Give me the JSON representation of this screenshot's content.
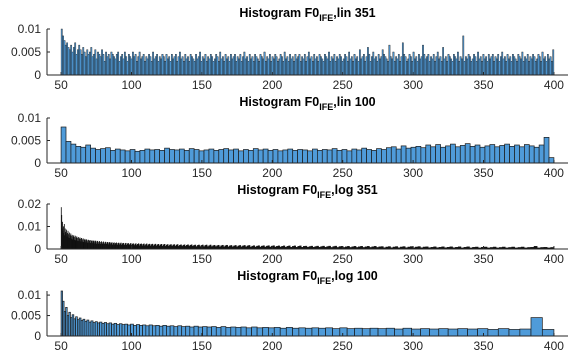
{
  "colors": {
    "bar_fill": "#4f9bd9",
    "bar_edge": "#1a1a1a",
    "axis": "#262626",
    "background": "#ffffff"
  },
  "chart_data": [
    {
      "type": "bar",
      "title_parts": [
        "Histogram F0",
        "IFE",
        ",lin 351"
      ],
      "xlim": [
        40,
        410
      ],
      "ylim": [
        0,
        0.01
      ],
      "x_ticks": [
        50,
        100,
        150,
        200,
        250,
        300,
        350,
        400
      ],
      "y_ticks": [
        0,
        0.005,
        0.01
      ],
      "x_tick_labels": [
        "50",
        "100",
        "150",
        "200",
        "250",
        "300",
        "350",
        "400"
      ],
      "y_tick_labels": [
        "0",
        "0.005",
        "0.01"
      ],
      "bin_count": 351,
      "x_min": 50,
      "x_max": 400,
      "bin_width": 0.997,
      "values": [
        0.01,
        0.0085,
        0.0075,
        0.0065,
        0.007,
        0.006,
        0.0055,
        0.0065,
        0.005,
        0.006,
        0.007,
        0.0045,
        0.0055,
        0.0065,
        0.0055,
        0.0045,
        0.006,
        0.005,
        0.004,
        0.0055,
        0.0045,
        0.005,
        0.006,
        0.004,
        0.0045,
        0.0055,
        0.0035,
        0.005,
        0.0045,
        0.004,
        0.0055,
        0.0045,
        0.003,
        0.005,
        0.004,
        0.0045,
        0.0035,
        0.005,
        0.0045,
        0.004,
        0.0035,
        0.0045,
        0.005,
        0.003,
        0.004,
        0.0045,
        0.0035,
        0.005,
        0.004,
        0.003,
        0.0045,
        0.004,
        0.0035,
        0.005,
        0.004,
        0.0045,
        0.003,
        0.004,
        0.005,
        0.0035,
        0.004,
        0.0045,
        0.003,
        0.004,
        0.0035,
        0.0045,
        0.004,
        0.003,
        0.005,
        0.0035,
        0.004,
        0.0045,
        0.003,
        0.004,
        0.0035,
        0.0045,
        0.004,
        0.003,
        0.0045,
        0.0035,
        0.004,
        0.003,
        0.0045,
        0.0035,
        0.004,
        0.0045,
        0.003,
        0.004,
        0.005,
        0.0035,
        0.004,
        0.003,
        0.0045,
        0.0035,
        0.004,
        0.003,
        0.0045,
        0.004,
        0.0035,
        0.003,
        0.0045,
        0.0035,
        0.004,
        0.005,
        0.003,
        0.004,
        0.0035,
        0.0045,
        0.003,
        0.004,
        0.0035,
        0.0045,
        0.004,
        0.003,
        0.0035,
        0.0045,
        0.004,
        0.003,
        0.005,
        0.0035,
        0.004,
        0.003,
        0.0045,
        0.0035,
        0.004,
        0.003,
        0.0045,
        0.0035,
        0.004,
        0.0045,
        0.003,
        0.004,
        0.0035,
        0.0045,
        0.003,
        0.004,
        0.005,
        0.0035,
        0.004,
        0.003,
        0.0045,
        0.0035,
        0.004,
        0.003,
        0.0045,
        0.004,
        0.0035,
        0.003,
        0.0045,
        0.004,
        0.0035,
        0.005,
        0.003,
        0.004,
        0.0035,
        0.0045,
        0.003,
        0.004,
        0.0035,
        0.0045,
        0.004,
        0.003,
        0.0035,
        0.0045,
        0.004,
        0.003,
        0.005,
        0.0035,
        0.004,
        0.003,
        0.0045,
        0.0035,
        0.004,
        0.003,
        0.0045,
        0.0035,
        0.004,
        0.0045,
        0.003,
        0.004,
        0.0035,
        0.0045,
        0.003,
        0.004,
        0.005,
        0.0035,
        0.004,
        0.003,
        0.0045,
        0.0035,
        0.004,
        0.003,
        0.0045,
        0.004,
        0.0035,
        0.003,
        0.0045,
        0.004,
        0.0035,
        0.005,
        0.003,
        0.004,
        0.0035,
        0.0045,
        0.003,
        0.004,
        0.0035,
        0.0045,
        0.004,
        0.003,
        0.0035,
        0.0045,
        0.004,
        0.003,
        0.005,
        0.0035,
        0.004,
        0.003,
        0.0045,
        0.0035,
        0.004,
        0.003,
        0.0055,
        0.0035,
        0.004,
        0.0045,
        0.003,
        0.004,
        0.006,
        0.0045,
        0.003,
        0.004,
        0.005,
        0.0035,
        0.004,
        0.003,
        0.0045,
        0.0035,
        0.004,
        0.0055,
        0.0045,
        0.004,
        0.0035,
        0.003,
        0.0065,
        0.004,
        0.0035,
        0.005,
        0.003,
        0.004,
        0.0035,
        0.0045,
        0.003,
        0.004,
        0.007,
        0.0045,
        0.004,
        0.003,
        0.0035,
        0.0045,
        0.004,
        0.003,
        0.005,
        0.0035,
        0.004,
        0.003,
        0.0045,
        0.0035,
        0.004,
        0.0065,
        0.0045,
        0.0035,
        0.004,
        0.0045,
        0.003,
        0.004,
        0.0035,
        0.0045,
        0.003,
        0.004,
        0.005,
        0.0035,
        0.004,
        0.003,
        0.006,
        0.0035,
        0.004,
        0.003,
        0.0045,
        0.004,
        0.0035,
        0.003,
        0.0045,
        0.004,
        0.0035,
        0.005,
        0.003,
        0.004,
        0.0035,
        0.0085,
        0.003,
        0.004,
        0.0035,
        0.0045,
        0.004,
        0.003,
        0.0035,
        0.0045,
        0.004,
        0.003,
        0.005,
        0.0035,
        0.004,
        0.003,
        0.0045,
        0.0035,
        0.004,
        0.003,
        0.0045,
        0.0035,
        0.004,
        0.0045,
        0.003,
        0.004,
        0.0035,
        0.0045,
        0.003,
        0.004,
        0.005,
        0.0035,
        0.004,
        0.003,
        0.0045,
        0.0035,
        0.004,
        0.003,
        0.0045,
        0.004,
        0.0035,
        0.003,
        0.0045,
        0.004,
        0.0035,
        0.005,
        0.003,
        0.004,
        0.0035,
        0.0045,
        0.003,
        0.004,
        0.0035,
        0.0045,
        0.004,
        0.003,
        0.0035,
        0.0045,
        0.004,
        0.003,
        0.005,
        0.0035,
        0.004,
        0.003,
        0.0045,
        0.0035,
        0.004,
        0.003,
        0.0055
      ]
    },
    {
      "type": "bar",
      "title_parts": [
        "Histogram F0",
        "IFE",
        ",lin 100"
      ],
      "xlim": [
        40,
        410
      ],
      "ylim": [
        0,
        0.01
      ],
      "x_ticks": [
        50,
        100,
        150,
        200,
        250,
        300,
        350,
        400
      ],
      "y_ticks": [
        0,
        0.005,
        0.01
      ],
      "x_tick_labels": [
        "50",
        "100",
        "150",
        "200",
        "250",
        "300",
        "350",
        "400"
      ],
      "y_tick_labels": [
        "0",
        "0.005",
        "0.01"
      ],
      "bin_count": 100,
      "x_min": 50,
      "x_max": 400,
      "bin_width": 3.5,
      "values": [
        0.008,
        0.0048,
        0.0042,
        0.0037,
        0.0035,
        0.004,
        0.0033,
        0.003,
        0.0032,
        0.0034,
        0.0028,
        0.0031,
        0.0029,
        0.0027,
        0.003,
        0.0026,
        0.0028,
        0.0031,
        0.0029,
        0.003,
        0.0028,
        0.0033,
        0.003,
        0.0029,
        0.0031,
        0.0028,
        0.0032,
        0.003,
        0.0027,
        0.0029,
        0.0031,
        0.0028,
        0.003,
        0.0032,
        0.0029,
        0.0031,
        0.0027,
        0.003,
        0.0028,
        0.0032,
        0.0029,
        0.0031,
        0.0028,
        0.003,
        0.0027,
        0.0029,
        0.0031,
        0.0028,
        0.003,
        0.0029,
        0.0027,
        0.0031,
        0.0028,
        0.003,
        0.0029,
        0.0032,
        0.0028,
        0.003,
        0.0027,
        0.0031,
        0.0029,
        0.0033,
        0.003,
        0.0028,
        0.0032,
        0.003,
        0.0034,
        0.0036,
        0.0031,
        0.0038,
        0.0033,
        0.0035,
        0.0037,
        0.0034,
        0.004,
        0.0036,
        0.0041,
        0.0035,
        0.0038,
        0.0042,
        0.0036,
        0.0039,
        0.0043,
        0.0037,
        0.004,
        0.0035,
        0.0038,
        0.0041,
        0.0036,
        0.0039,
        0.0042,
        0.0037,
        0.004,
        0.0036,
        0.0041,
        0.0038,
        0.0035,
        0.004,
        0.0057,
        0.0012
      ]
    },
    {
      "type": "bar",
      "title_parts": [
        "Histogram F0",
        "IFE",
        ",log 351"
      ],
      "xlim": [
        40,
        410
      ],
      "ylim": [
        0,
        0.02
      ],
      "x_ticks": [
        50,
        100,
        150,
        200,
        250,
        300,
        350,
        400
      ],
      "y_ticks": [
        0,
        0.01,
        0.02
      ],
      "x_tick_labels": [
        "50",
        "100",
        "150",
        "200",
        "250",
        "300",
        "350",
        "400"
      ],
      "y_tick_labels": [
        "0",
        "0.01",
        "0.02"
      ],
      "bin_count": 351,
      "x_min": 50,
      "x_max": 400,
      "log_bins": true,
      "values": [
        0.0185,
        0.015,
        0.009,
        0.012,
        0.008,
        0.01,
        0.007,
        0.011,
        0.006,
        0.009,
        0.0075,
        0.0065,
        0.0085,
        0.0055,
        0.007,
        0.008,
        0.005,
        0.0065,
        0.0072,
        0.0048,
        0.006,
        0.0068,
        0.0045,
        0.0058,
        0.0062,
        0.0042,
        0.0055,
        0.006,
        0.004,
        0.0052,
        0.0058,
        0.0038,
        0.005,
        0.0055,
        0.0036,
        0.0048,
        0.0052,
        0.0035,
        0.0046,
        0.005,
        0.0033,
        0.0044,
        0.0048,
        0.0032,
        0.0042,
        0.0046,
        0.003,
        0.004,
        0.0044,
        0.0029,
        0.0038,
        0.0042,
        0.0028,
        0.0037,
        0.004,
        0.0027,
        0.0036,
        0.0039,
        0.0026,
        0.0035,
        0.0038,
        0.0025,
        0.0034,
        0.0037,
        0.0024,
        0.0033,
        0.0036,
        0.0023,
        0.0032,
        0.0035,
        0.0023,
        0.0031,
        0.0034,
        0.0022,
        0.003,
        0.0033,
        0.0022,
        0.0029,
        0.0032,
        0.0021,
        0.0028,
        0.0031,
        0.0021,
        0.0028,
        0.003,
        0.002,
        0.0027,
        0.003,
        0.002,
        0.0026,
        0.0029,
        0.0019,
        0.0026,
        0.0028,
        0.0019,
        0.0025,
        0.0028,
        0.0018,
        0.0025,
        0.0027,
        0.0018,
        0.0024,
        0.0027,
        0.0018,
        0.0024,
        0.0026,
        0.0017,
        0.0023,
        0.0026,
        0.0017,
        0.0023,
        0.0025,
        0.0017,
        0.0022,
        0.0025,
        0.0016,
        0.0022,
        0.0024,
        0.0016,
        0.0022,
        0.0024,
        0.0016,
        0.0021,
        0.0024,
        0.0015,
        0.0021,
        0.0023,
        0.0015,
        0.0021,
        0.0023,
        0.0015,
        0.002,
        0.0023,
        0.0015,
        0.002,
        0.0022,
        0.0014,
        0.002,
        0.0022,
        0.0014,
        0.0019,
        0.0022,
        0.0014,
        0.0019,
        0.0021,
        0.0014,
        0.0019,
        0.0021,
        0.0013,
        0.0019,
        0.0021,
        0.0013,
        0.0018,
        0.002,
        0.0013,
        0.0018,
        0.002,
        0.0013,
        0.0018,
        0.002,
        0.0013,
        0.0018,
        0.002,
        0.0012,
        0.0017,
        0.0019,
        0.0012,
        0.0017,
        0.0019,
        0.0012,
        0.0017,
        0.0019,
        0.0012,
        0.0017,
        0.0019,
        0.0012,
        0.0016,
        0.0018,
        0.0011,
        0.0016,
        0.0018,
        0.0011,
        0.0016,
        0.0018,
        0.0011,
        0.0016,
        0.0018,
        0.0011,
        0.0015,
        0.0018,
        0.0011,
        0.0015,
        0.0017,
        0.0011,
        0.0015,
        0.0017,
        0.001,
        0.0015,
        0.0017,
        0.001,
        0.0015,
        0.0017,
        0.001,
        0.0014,
        0.0016,
        0.001,
        0.0014,
        0.0016,
        0.001,
        0.0014,
        0.0016,
        0.001,
        0.0014,
        0.0016,
        0.001,
        0.0014,
        0.0016,
        0.0009,
        0.0013,
        0.0015,
        0.0009,
        0.0013,
        0.0015,
        0.0009,
        0.0013,
        0.0015,
        0.0009,
        0.0013,
        0.0015,
        0.0009,
        0.0013,
        0.0015,
        0.0009,
        0.0012,
        0.0014,
        0.0009,
        0.0012,
        0.0014,
        0.0008,
        0.0012,
        0.0014,
        0.0008,
        0.0012,
        0.0014,
        0.0008,
        0.0012,
        0.0014,
        0.0008,
        0.0012,
        0.0013,
        0.0008,
        0.0011,
        0.0013,
        0.0008,
        0.0011,
        0.0013,
        0.0008,
        0.0011,
        0.0013,
        0.0008,
        0.0011,
        0.0013,
        0.0007,
        0.0011,
        0.0013,
        0.0007,
        0.0011,
        0.0012,
        0.0007,
        0.001,
        0.0012,
        0.0007,
        0.001,
        0.0012,
        0.0007,
        0.001,
        0.0012,
        0.0007,
        0.001,
        0.0012,
        0.0007,
        0.001,
        0.0012,
        0.0007,
        0.001,
        0.0011,
        0.0006,
        0.0009,
        0.0011,
        0.0006,
        0.0009,
        0.0011,
        0.0006,
        0.0009,
        0.0011,
        0.0006,
        0.0009,
        0.0011,
        0.0006,
        0.0009,
        0.0011,
        0.0006,
        0.0009,
        0.001,
        0.0006,
        0.0008,
        0.001,
        0.0006,
        0.0008,
        0.001,
        0.0006,
        0.0008,
        0.001,
        0.0006,
        0.0008,
        0.001,
        0.0005,
        0.0008,
        0.001,
        0.0005,
        0.0008,
        0.0009,
        0.0005,
        0.0008,
        0.0009,
        0.0005,
        0.0007,
        0.0009,
        0.0005,
        0.0007,
        0.0009,
        0.0005,
        0.0007,
        0.0009,
        0.0005,
        0.0007,
        0.0009,
        0.0005,
        0.0007,
        0.0008,
        0.0012,
        0.0005,
        0.0007,
        0.0008,
        0.0005,
        0.0007
      ]
    },
    {
      "type": "bar",
      "title_parts": [
        "Histogram F0",
        "IFE",
        ",log 100"
      ],
      "xlim": [
        40,
        410
      ],
      "ylim": [
        0,
        0.011
      ],
      "x_ticks": [
        50,
        100,
        150,
        200,
        250,
        300,
        350,
        400
      ],
      "y_ticks": [
        0,
        0.005,
        0.01
      ],
      "x_tick_labels": [
        "50",
        "100",
        "150",
        "200",
        "250",
        "300",
        "350",
        "400"
      ],
      "y_tick_labels": [
        "0",
        "0.005",
        "0.01"
      ],
      "bin_count": 100,
      "x_min": 50,
      "x_max": 400,
      "log_bins": true,
      "values": [
        0.011,
        0.0085,
        0.006,
        0.007,
        0.005,
        0.0058,
        0.0045,
        0.0052,
        0.0042,
        0.0047,
        0.004,
        0.0044,
        0.0038,
        0.0041,
        0.0036,
        0.0039,
        0.0034,
        0.0037,
        0.0033,
        0.0035,
        0.0032,
        0.0034,
        0.0031,
        0.0033,
        0.003,
        0.0032,
        0.0029,
        0.0031,
        0.0028,
        0.003,
        0.0028,
        0.0029,
        0.0027,
        0.0029,
        0.0026,
        0.0028,
        0.0026,
        0.0027,
        0.0025,
        0.0027,
        0.0025,
        0.0026,
        0.0024,
        0.0026,
        0.0024,
        0.0025,
        0.0023,
        0.0025,
        0.0023,
        0.0024,
        0.0022,
        0.0024,
        0.0022,
        0.0023,
        0.0022,
        0.0023,
        0.0021,
        0.0023,
        0.0021,
        0.0022,
        0.0021,
        0.0022,
        0.002,
        0.0022,
        0.002,
        0.0021,
        0.002,
        0.0021,
        0.0019,
        0.0021,
        0.0019,
        0.002,
        0.0019,
        0.002,
        0.0019,
        0.002,
        0.0018,
        0.002,
        0.0018,
        0.0019,
        0.0018,
        0.0019,
        0.0018,
        0.0019,
        0.0017,
        0.0019,
        0.0017,
        0.0018,
        0.0017,
        0.0018,
        0.0017,
        0.0018,
        0.0017,
        0.0018,
        0.0016,
        0.0018,
        0.0016,
        0.0017,
        0.0045,
        0.0016
      ]
    }
  ]
}
